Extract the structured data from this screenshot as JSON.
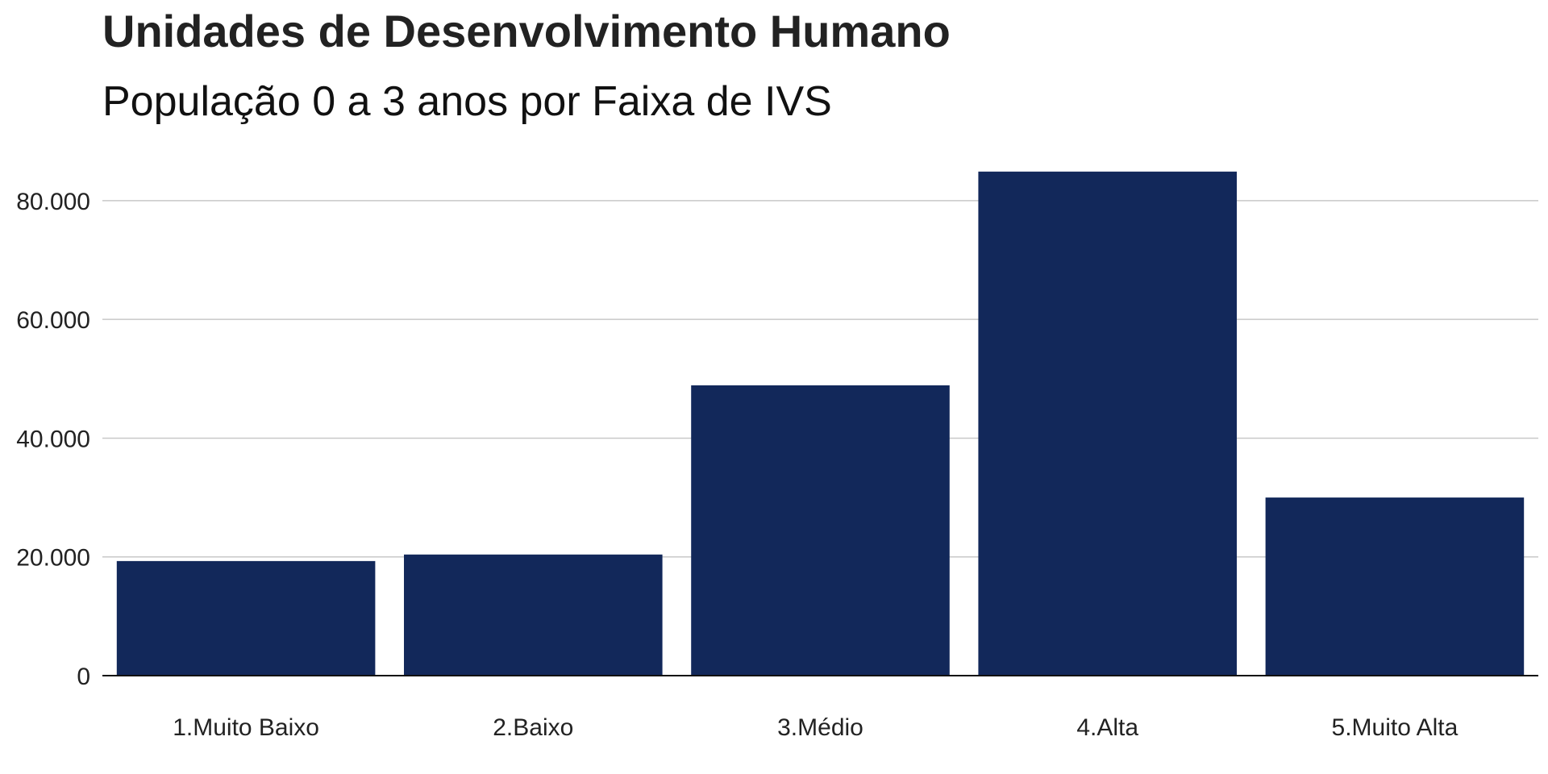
{
  "chart_data": {
    "type": "bar",
    "title": "Unidades de Desenvolvimento Humano",
    "subtitle": "População 0 a 3 anos por Faixa de IVS",
    "xlabel": "",
    "ylabel": "",
    "categories": [
      "1.Muito Baixo",
      "2.Baixo",
      "3.Médio",
      "4.Alta",
      "5.Muito Alta"
    ],
    "values": [
      19300,
      20400,
      48900,
      84900,
      30000
    ],
    "ylim": [
      0,
      88000
    ],
    "yticks": [
      0,
      20000,
      40000,
      60000,
      80000
    ],
    "ytick_labels": [
      "0",
      "20.000",
      "40.000",
      "60.000",
      "80.000"
    ],
    "grid": true,
    "legend": "none",
    "bar_color": "#12285a"
  }
}
